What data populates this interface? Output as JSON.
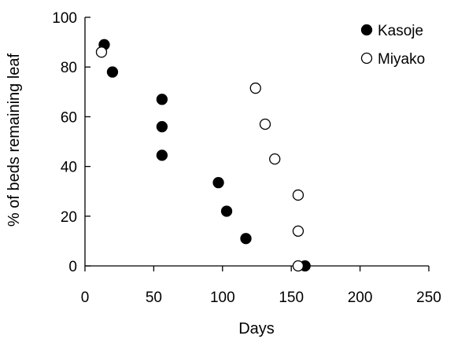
{
  "chart_data": {
    "type": "scatter",
    "title": "",
    "xlabel": "Days",
    "ylabel": "% of beds remaining leaf",
    "xlim": [
      0,
      250
    ],
    "ylim": [
      0,
      100
    ],
    "xticks": [
      0,
      50,
      100,
      150,
      200,
      250
    ],
    "yticks": [
      0,
      20,
      40,
      60,
      80,
      100
    ],
    "grid": false,
    "legend_position": "top-right",
    "series": [
      {
        "name": "Kasoje",
        "marker": "filled-circle",
        "color": "#000000",
        "points": [
          {
            "x": 14,
            "y": 89
          },
          {
            "x": 20,
            "y": 78
          },
          {
            "x": 56,
            "y": 67
          },
          {
            "x": 56,
            "y": 56
          },
          {
            "x": 56,
            "y": 44.5
          },
          {
            "x": 97,
            "y": 33.5
          },
          {
            "x": 103,
            "y": 22
          },
          {
            "x": 117,
            "y": 11
          },
          {
            "x": 160,
            "y": 0
          }
        ]
      },
      {
        "name": "Miyako",
        "marker": "open-circle",
        "color": "#000000",
        "points": [
          {
            "x": 12,
            "y": 86
          },
          {
            "x": 124,
            "y": 71.5
          },
          {
            "x": 131,
            "y": 57
          },
          {
            "x": 138,
            "y": 43
          },
          {
            "x": 155,
            "y": 28.5
          },
          {
            "x": 155,
            "y": 14
          },
          {
            "x": 155,
            "y": 0
          }
        ]
      }
    ]
  }
}
